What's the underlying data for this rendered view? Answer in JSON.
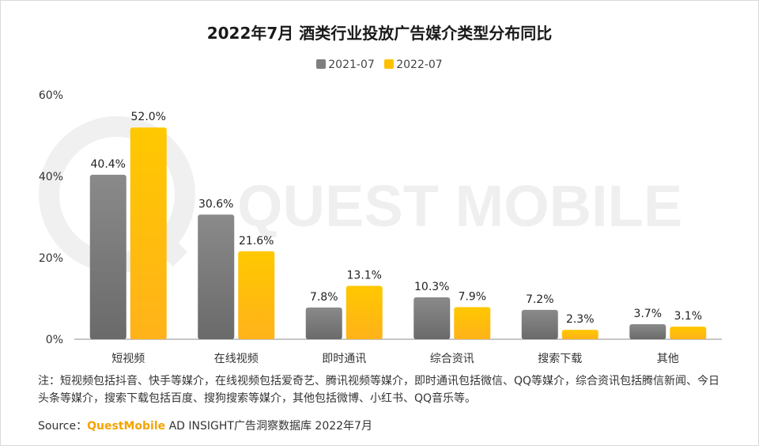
{
  "chart_data": {
    "type": "bar",
    "title": "2022年7月 酒类行业投放广告媒介类型分布同比",
    "categories": [
      "短视频",
      "在线视频",
      "即时通讯",
      "综合资讯",
      "搜索下载",
      "其他"
    ],
    "series": [
      {
        "name": "2021-07",
        "values": [
          40.4,
          30.6,
          7.8,
          10.3,
          7.2,
          3.7
        ],
        "labels": [
          "40.4%",
          "30.6%",
          "7.8%",
          "10.3%",
          "7.2%",
          "3.7%"
        ],
        "color": "#7f7f7f"
      },
      {
        "name": "2022-07",
        "values": [
          52.0,
          21.6,
          13.1,
          7.9,
          2.3,
          3.1
        ],
        "labels": [
          "52.0%",
          "21.6%",
          "13.1%",
          "7.9%",
          "2.3%",
          "3.1%"
        ],
        "color": "#ffc000"
      }
    ],
    "ylim": [
      0,
      60
    ],
    "yticks": [
      0,
      20,
      40,
      60
    ],
    "ytick_labels": [
      "0%",
      "20%",
      "40%",
      "60%"
    ],
    "legend": "top",
    "grid": false
  },
  "watermark": "QUEST MOBILE",
  "note": "注：短视频包括抖音、快手等媒介，在线视频包括爱奇艺、腾讯视频等媒介，即时通讯包括微信、QQ等媒介，综合资讯包括腾信新闻、今日头条等媒介，搜索下载包括百度、搜狗搜索等媒介，其他包括微博、小红书、QQ音乐等。",
  "source": {
    "prefix": "Source：",
    "brand": "QuestMobile",
    "suffix": " AD INSIGHT广告洞察数据库 2022年7月"
  }
}
